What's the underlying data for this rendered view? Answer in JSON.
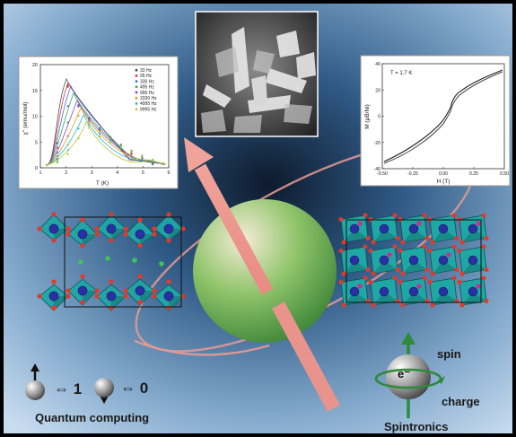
{
  "panels": {
    "ac_susceptibility": {
      "y_axis_label": "χ'' (emu/mol)",
      "x_axis_label": "T (K)",
      "x_ticks": [
        "1",
        "2",
        "3",
        "4",
        "5",
        "6"
      ],
      "y_ticks": [
        "0",
        "5",
        "10",
        "15",
        "20"
      ],
      "legend": [
        "33 Hz",
        "95 Hz",
        "330 Hz",
        "495 Hz",
        "995 Hz",
        "3330 Hz",
        "4995 Hz",
        "9995 Hz"
      ],
      "series_colors": [
        "#4d4d4d",
        "#e0303a",
        "#3a6fd8",
        "#2fa84f",
        "#8e44ad",
        "#d8a020",
        "#22b8c8",
        "#b6c63a"
      ]
    },
    "magnetization": {
      "temperature_label": "T = 1.7 K",
      "y_axis_label": "M (μB/Ni)",
      "x_axis_label": "H (T)",
      "x_ticks": [
        "-0.50",
        "-0.25",
        "0.00",
        "0.25",
        "0.50"
      ],
      "y_ticks": [
        "40",
        "20",
        "0",
        "-20",
        "-40"
      ]
    }
  },
  "qubit": {
    "equiv_one": "⇔ 1",
    "equiv_zero": "⇔ 0",
    "caption": "Quantum computing"
  },
  "spin": {
    "electron": "e⁻",
    "spin_label": "spin",
    "charge_label": "charge",
    "caption": "Spintronics"
  }
}
